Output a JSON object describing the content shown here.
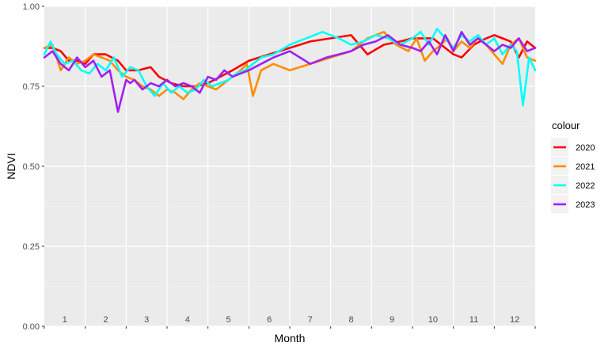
{
  "chart_data": {
    "type": "line",
    "xlabel": "Month",
    "ylabel": "NDVI",
    "xlim": [
      0,
      12
    ],
    "ylim": [
      0,
      1
    ],
    "y_ticks": [
      "0.00",
      "0.25",
      "0.50",
      "0.75",
      "1.00"
    ],
    "month_labels": [
      "1",
      "2",
      "3",
      "4",
      "5",
      "6",
      "7",
      "8",
      "9",
      "10",
      "11",
      "12"
    ],
    "grid": true,
    "legend": {
      "title": "colour",
      "position": "right"
    },
    "series": [
      {
        "name": "2020",
        "color": "#ff0000",
        "x": [
          0.0,
          0.2,
          0.4,
          0.6,
          0.8,
          1.0,
          1.2,
          1.5,
          1.8,
          2.0,
          2.3,
          2.6,
          2.8,
          3.1,
          3.4,
          3.7,
          4.0,
          4.3,
          4.6,
          5.0,
          5.5,
          6.0,
          6.5,
          7.0,
          7.5,
          7.9,
          8.3,
          8.7,
          9.0,
          9.2,
          9.5,
          9.8,
          10.0,
          10.2,
          10.5,
          10.8,
          11.0,
          11.2,
          11.4,
          11.6,
          11.8,
          12.0
        ],
        "y": [
          0.87,
          0.87,
          0.86,
          0.83,
          0.83,
          0.82,
          0.85,
          0.85,
          0.83,
          0.8,
          0.8,
          0.81,
          0.78,
          0.76,
          0.75,
          0.75,
          0.76,
          0.78,
          0.8,
          0.83,
          0.85,
          0.87,
          0.89,
          0.9,
          0.91,
          0.85,
          0.88,
          0.89,
          0.9,
          0.9,
          0.9,
          0.87,
          0.85,
          0.84,
          0.88,
          0.9,
          0.91,
          0.9,
          0.89,
          0.84,
          0.89,
          0.87
        ]
      },
      {
        "name": "2021",
        "color": "#ff8c00",
        "x": [
          0.0,
          0.2,
          0.4,
          0.6,
          0.8,
          1.0,
          1.2,
          1.4,
          1.6,
          1.8,
          2.0,
          2.2,
          2.4,
          2.6,
          2.8,
          3.0,
          3.2,
          3.4,
          3.6,
          3.8,
          4.0,
          4.2,
          4.4,
          4.6,
          4.8,
          4.95,
          5.1,
          5.3,
          5.6,
          6.0,
          6.5,
          7.0,
          7.5,
          7.9,
          8.3,
          8.6,
          8.9,
          9.1,
          9.3,
          9.5,
          9.7,
          9.85,
          10.0,
          10.2,
          10.4,
          10.6,
          10.8,
          11.0,
          11.2,
          11.4,
          11.6,
          11.8,
          12.0
        ],
        "y": [
          0.87,
          0.88,
          0.8,
          0.84,
          0.82,
          0.83,
          0.85,
          0.84,
          0.83,
          0.8,
          0.78,
          0.77,
          0.75,
          0.74,
          0.72,
          0.74,
          0.73,
          0.71,
          0.74,
          0.76,
          0.75,
          0.74,
          0.76,
          0.78,
          0.8,
          0.82,
          0.72,
          0.8,
          0.82,
          0.8,
          0.82,
          0.84,
          0.86,
          0.9,
          0.92,
          0.88,
          0.86,
          0.9,
          0.83,
          0.86,
          0.88,
          0.9,
          0.86,
          0.89,
          0.87,
          0.9,
          0.88,
          0.85,
          0.82,
          0.88,
          0.9,
          0.84,
          0.83
        ]
      },
      {
        "name": "2022",
        "color": "#00ffff",
        "x": [
          0.0,
          0.15,
          0.3,
          0.5,
          0.7,
          0.9,
          1.1,
          1.3,
          1.5,
          1.7,
          1.9,
          2.1,
          2.3,
          2.5,
          2.7,
          2.9,
          3.1,
          3.3,
          3.5,
          3.7,
          3.9,
          4.1,
          4.3,
          4.5,
          4.7,
          4.9,
          5.1,
          5.3,
          5.6,
          6.0,
          6.4,
          6.8,
          7.2,
          7.5,
          7.8,
          8.1,
          8.4,
          8.7,
          9.0,
          9.2,
          9.4,
          9.6,
          9.8,
          10.0,
          10.2,
          10.4,
          10.6,
          10.8,
          11.0,
          11.2,
          11.4,
          11.55,
          11.7,
          11.85,
          12.0
        ],
        "y": [
          0.85,
          0.89,
          0.85,
          0.82,
          0.83,
          0.8,
          0.79,
          0.82,
          0.8,
          0.84,
          0.78,
          0.81,
          0.8,
          0.75,
          0.72,
          0.76,
          0.73,
          0.75,
          0.73,
          0.74,
          0.77,
          0.75,
          0.76,
          0.77,
          0.79,
          0.8,
          0.82,
          0.84,
          0.85,
          0.88,
          0.9,
          0.92,
          0.9,
          0.88,
          0.89,
          0.91,
          0.9,
          0.88,
          0.9,
          0.92,
          0.88,
          0.93,
          0.9,
          0.87,
          0.91,
          0.89,
          0.91,
          0.88,
          0.9,
          0.85,
          0.88,
          0.86,
          0.69,
          0.84,
          0.8
        ]
      },
      {
        "name": "2023",
        "color": "#a020f0",
        "x": [
          0.0,
          0.2,
          0.4,
          0.6,
          0.8,
          1.0,
          1.2,
          1.4,
          1.6,
          1.8,
          2.0,
          2.1,
          2.2,
          2.4,
          2.6,
          2.8,
          3.0,
          3.2,
          3.4,
          3.6,
          3.8,
          4.0,
          4.2,
          4.4,
          4.6,
          4.8,
          5.0,
          5.3,
          5.6,
          6.0,
          6.5,
          6.9,
          7.2,
          7.5,
          7.8,
          8.1,
          8.4,
          8.7,
          9.0,
          9.2,
          9.4,
          9.6,
          9.8,
          10.0,
          10.2,
          10.4,
          10.6,
          10.8,
          11.0,
          11.2,
          11.4,
          11.6,
          11.8,
          12.0
        ],
        "y": [
          0.84,
          0.86,
          0.82,
          0.8,
          0.84,
          0.81,
          0.83,
          0.78,
          0.8,
          0.67,
          0.77,
          0.76,
          0.77,
          0.74,
          0.76,
          0.75,
          0.77,
          0.75,
          0.76,
          0.75,
          0.73,
          0.78,
          0.77,
          0.8,
          0.78,
          0.79,
          0.8,
          0.82,
          0.84,
          0.86,
          0.82,
          0.84,
          0.85,
          0.86,
          0.88,
          0.89,
          0.91,
          0.88,
          0.87,
          0.86,
          0.89,
          0.85,
          0.91,
          0.86,
          0.92,
          0.88,
          0.9,
          0.88,
          0.86,
          0.88,
          0.87,
          0.9,
          0.86,
          0.87
        ]
      }
    ]
  }
}
